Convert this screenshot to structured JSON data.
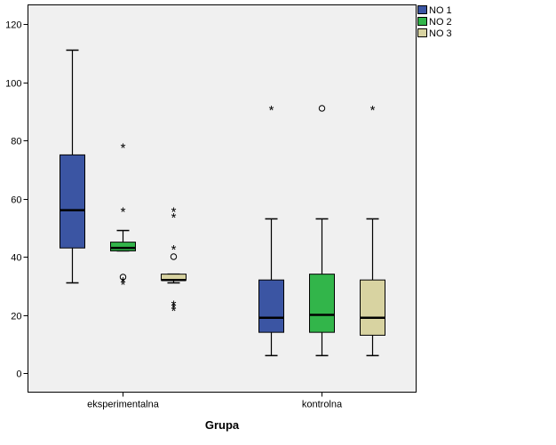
{
  "chart_data": {
    "type": "boxplot",
    "xlabel": "Grupa",
    "ylabel": "",
    "ylim": [
      -6.5,
      126
    ],
    "yticks": [
      0,
      20,
      40,
      60,
      80,
      100,
      120
    ],
    "grid": false,
    "legend_position": "top-right",
    "categories": [
      "eksperimentalna",
      "kontrolna"
    ],
    "series": [
      {
        "name": "NO 1",
        "color": "#3b55a3",
        "boxes": [
          {
            "whisker_low": 31,
            "q1": 43,
            "median": 56,
            "q3": 75,
            "whisker_high": 111,
            "outliers": [],
            "extremes": []
          },
          {
            "whisker_low": 6,
            "q1": 14,
            "median": 19,
            "q3": 32,
            "whisker_high": 53,
            "outliers": [],
            "extremes": [
              91
            ]
          }
        ]
      },
      {
        "name": "NO 2",
        "color": "#32b54a",
        "boxes": [
          {
            "whisker_low": 42,
            "q1": 42,
            "median": 43,
            "q3": 45,
            "whisker_high": 49,
            "outliers": [
              33
            ],
            "extremes": [
              31,
              32,
              56,
              78
            ]
          },
          {
            "whisker_low": 6,
            "q1": 14,
            "median": 20,
            "q3": 34,
            "whisker_high": 53,
            "outliers": [
              91
            ],
            "extremes": []
          }
        ]
      },
      {
        "name": "NO 3",
        "color": "#d8d3a1",
        "boxes": [
          {
            "whisker_low": 31,
            "q1": 32,
            "median": 32,
            "q3": 34,
            "whisker_high": 34,
            "outliers": [
              40
            ],
            "extremes": [
              22,
              23,
              24,
              43,
              54,
              56
            ]
          },
          {
            "whisker_low": 6,
            "q1": 13,
            "median": 19,
            "q3": 32,
            "whisker_high": 53,
            "outliers": [],
            "extremes": [
              91
            ]
          }
        ]
      }
    ]
  }
}
